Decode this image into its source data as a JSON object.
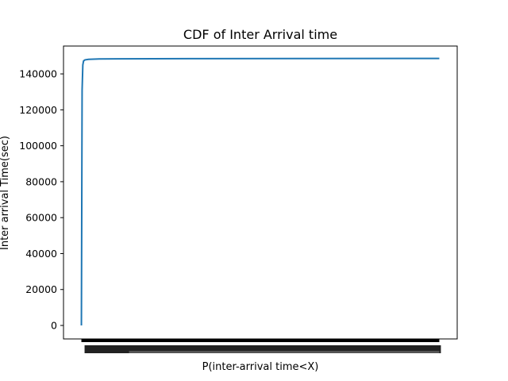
{
  "chart_data": {
    "type": "line",
    "title": "CDF of Inter Arrival time",
    "xlabel": "P(inter-arrival time<X)",
    "ylabel": "Inter arrival Time(sec)",
    "ylim": [
      -7500,
      155500
    ],
    "yticks": [
      0,
      20000,
      40000,
      60000,
      80000,
      100000,
      120000,
      140000
    ],
    "ytick_labels": [
      "0",
      "20000",
      "40000",
      "60000",
      "80000",
      "100000",
      "120000",
      "140000"
    ],
    "xlim": [
      -0.05,
      1.05
    ],
    "grid": false,
    "legend": "none",
    "series": [
      {
        "color": "#1f77b4",
        "x": [
          0,
          0.002,
          0.004,
          0.006,
          0.01,
          0.02,
          0.05,
          0.1,
          0.3,
          0.6,
          1.0
        ],
        "y": [
          0,
          131000,
          145000,
          147200,
          147800,
          148100,
          148300,
          148400,
          148500,
          148550,
          148600
        ]
      }
    ],
    "xtick_note": "dense overlapping tick labels along x axis (illegible)"
  }
}
